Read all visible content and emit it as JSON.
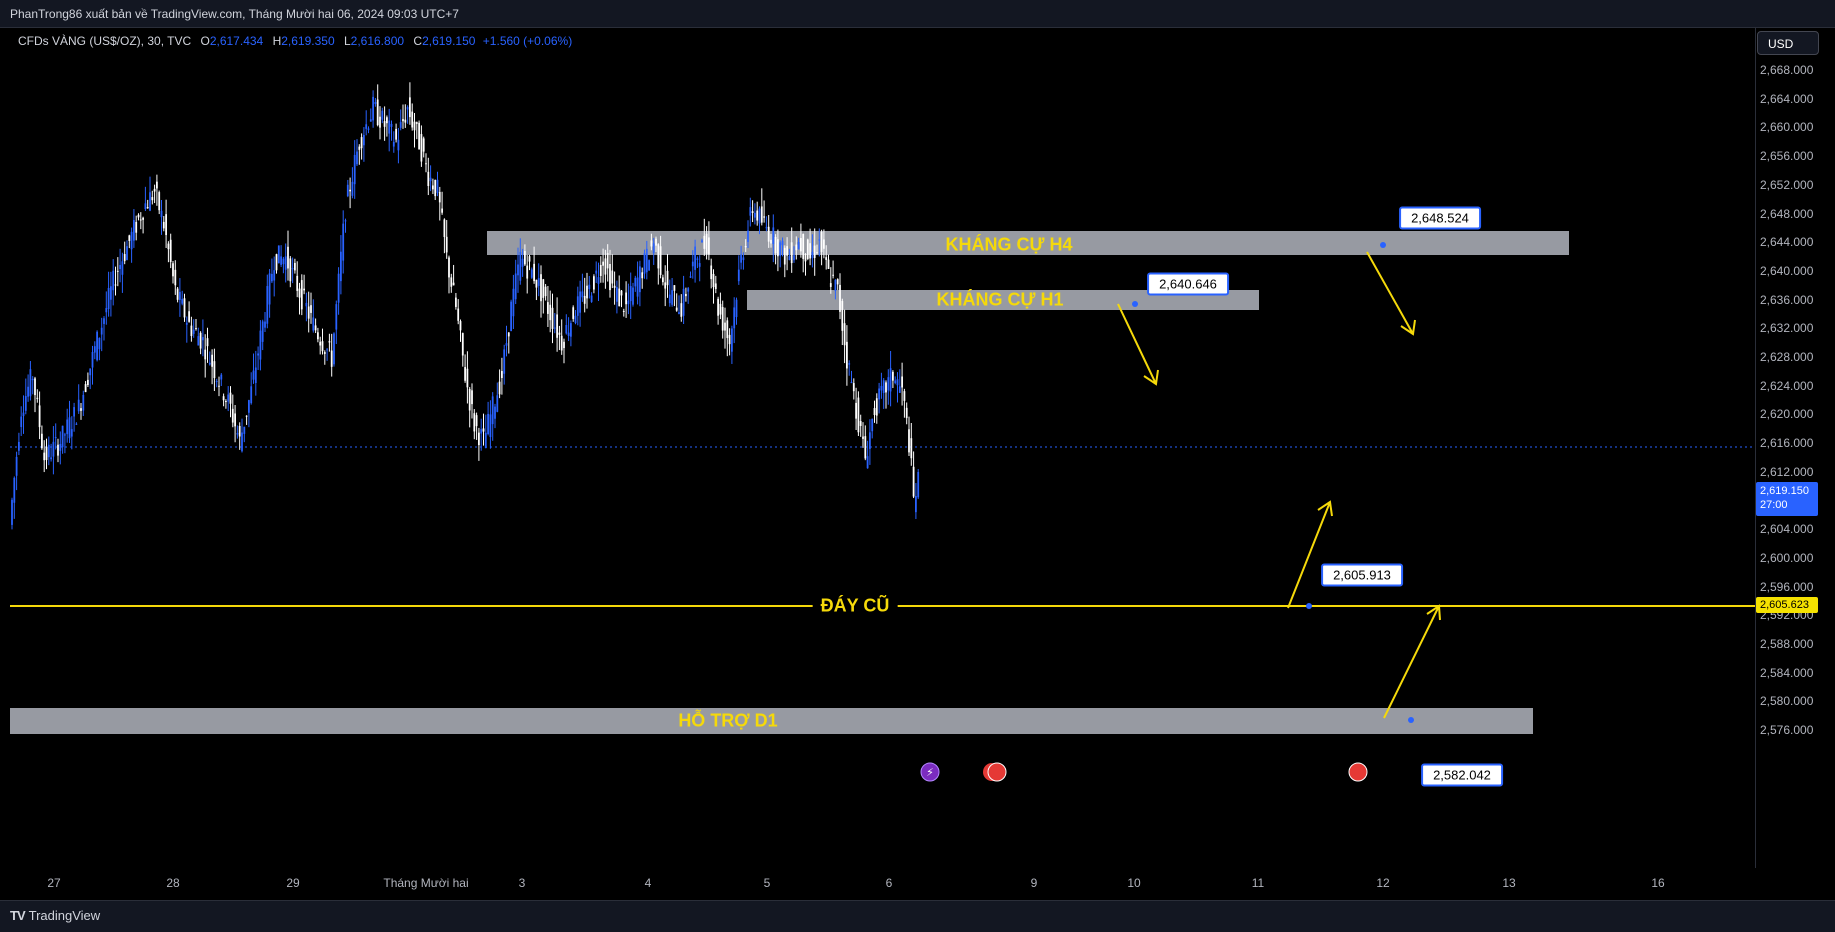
{
  "header": {
    "published": "PhanTrong86 xuất bản về TradingView.com, Tháng Mười hai 06, 2024 09:03 UTC+7"
  },
  "legend": {
    "symbol": "CFDs VÀNG (US$/OZ), 30, TVC",
    "o_key": "O",
    "o_val": "2,617.434",
    "h_key": "H",
    "h_val": "2,619.350",
    "l_key": "L",
    "l_val": "2,616.800",
    "c_key": "C",
    "c_val": "2,619.150",
    "change": "+1.560 (+0.06%)"
  },
  "currency_button": "USD",
  "price_axis": {
    "ticks": [
      "2,668.000",
      "2,664.000",
      "2,660.000",
      "2,656.000",
      "2,652.000",
      "2,648.000",
      "2,644.000",
      "2,640.000",
      "2,636.000",
      "2,632.000",
      "2,628.000",
      "2,624.000",
      "2,620.000",
      "2,616.000",
      "2,612.000",
      "2,608.000",
      "2,604.000",
      "2,600.000",
      "2,596.000",
      "2,592.000",
      "2,588.000",
      "2,584.000",
      "2,580.000",
      "2,576.000"
    ],
    "current_price": "2,619.150",
    "countdown": "27:00",
    "line_price": "2,605.623"
  },
  "time_axis": {
    "labels": [
      "27",
      "28",
      "29",
      "Tháng Mười hai",
      "3",
      "4",
      "5",
      "6",
      "9",
      "10",
      "11",
      "12",
      "13",
      "16"
    ]
  },
  "zones": {
    "h4": "KHÁNG CỰ H4",
    "h1": "KHÁNG CỰ H1",
    "d1": "HỖ TRỢ D1",
    "old_low": "ĐÁY CŨ"
  },
  "callouts": [
    "2,648.524",
    "2,640.646",
    "2,605.913",
    "2,582.042"
  ],
  "footer": {
    "brand": "TradingView"
  },
  "colors": {
    "background": "#000000",
    "up_candle": "#2962ff",
    "down_candle": "#ffffff",
    "zone": "#b2b5be",
    "annotation": "#f5d90a",
    "callout_border": "#2962ff"
  },
  "chart_data": {
    "type": "candlestick",
    "symbol": "CFDs VÀNG (US$/OZ)",
    "interval": "30",
    "ylim": [
      2574,
      2670
    ],
    "close_path": [
      [
        0,
        2614
      ],
      [
        5,
        2628
      ],
      [
        10,
        2632
      ],
      [
        15,
        2622
      ],
      [
        22,
        2624
      ],
      [
        30,
        2628
      ],
      [
        38,
        2636
      ],
      [
        46,
        2644
      ],
      [
        52,
        2648
      ],
      [
        58,
        2652
      ],
      [
        63,
        2654
      ],
      [
        67,
        2650
      ],
      [
        72,
        2642
      ],
      [
        78,
        2638
      ],
      [
        84,
        2636
      ],
      [
        90,
        2632
      ],
      [
        96,
        2628
      ],
      [
        100,
        2624
      ],
      [
        105,
        2630
      ],
      [
        110,
        2638
      ],
      [
        115,
        2646
      ],
      [
        120,
        2646
      ],
      [
        126,
        2642
      ],
      [
        132,
        2638
      ],
      [
        136,
        2636
      ],
      [
        140,
        2634
      ],
      [
        146,
        2652
      ],
      [
        152,
        2660
      ],
      [
        158,
        2664
      ],
      [
        163,
        2662
      ],
      [
        168,
        2660
      ],
      [
        173,
        2664
      ],
      [
        178,
        2660
      ],
      [
        182,
        2656
      ],
      [
        186,
        2654
      ],
      [
        190,
        2646
      ],
      [
        194,
        2640
      ],
      [
        198,
        2632
      ],
      [
        202,
        2626
      ],
      [
        206,
        2624
      ],
      [
        210,
        2628
      ],
      [
        214,
        2632
      ],
      [
        218,
        2640
      ],
      [
        222,
        2646
      ],
      [
        228,
        2644
      ],
      [
        234,
        2640
      ],
      [
        240,
        2636
      ],
      [
        246,
        2640
      ],
      [
        252,
        2642
      ],
      [
        258,
        2646
      ],
      [
        263,
        2642
      ],
      [
        268,
        2640
      ],
      [
        274,
        2644
      ],
      [
        280,
        2648
      ],
      [
        286,
        2642
      ],
      [
        292,
        2640
      ],
      [
        298,
        2646
      ],
      [
        303,
        2648
      ],
      [
        308,
        2640
      ],
      [
        313,
        2636
      ],
      [
        318,
        2646
      ],
      [
        323,
        2652
      ],
      [
        328,
        2650
      ],
      [
        333,
        2648
      ],
      [
        338,
        2646
      ],
      [
        343,
        2648
      ],
      [
        348,
        2646
      ],
      [
        352,
        2648
      ],
      [
        356,
        2644
      ],
      [
        360,
        2642
      ],
      [
        364,
        2634
      ],
      [
        368,
        2628
      ],
      [
        372,
        2622
      ],
      [
        376,
        2628
      ],
      [
        380,
        2630
      ],
      [
        384,
        2632
      ],
      [
        388,
        2630
      ],
      [
        391,
        2624
      ],
      [
        393,
        2617
      ],
      [
        395,
        2619
      ]
    ]
  }
}
